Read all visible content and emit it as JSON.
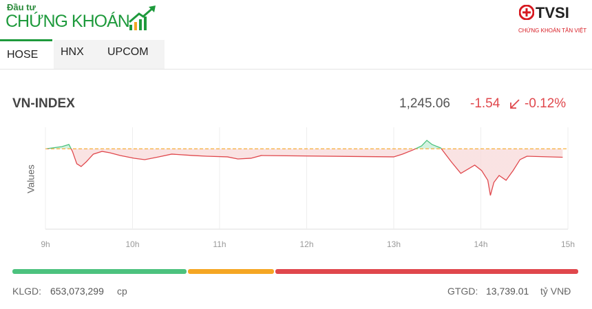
{
  "header": {
    "logo_top": "Đầu tư",
    "logo_main": "CHỨNG KHOÁN",
    "partner": "TVSI",
    "partner_sub": "CHỨNG KHOÁN TÂN VIỆT"
  },
  "tabs": [
    "HOSE",
    "HNX",
    "UPCOM"
  ],
  "index": {
    "name": "VN-INDEX",
    "value": "1,245.06",
    "change": "-1.54",
    "change_percent": "-0.12%"
  },
  "chart_data": {
    "type": "line",
    "y_label": "Values",
    "x": [
      9.02,
      9.19,
      9.27,
      9.31,
      9.36,
      9.41,
      9.47,
      9.55,
      9.65,
      9.74,
      9.86,
      10.02,
      10.14,
      10.3,
      10.45,
      10.69,
      10.85,
      11.09,
      11.21,
      11.36,
      11.48,
      13.0,
      13.1,
      13.22,
      13.32,
      13.38,
      13.44,
      13.54,
      13.66,
      13.77,
      13.85,
      13.93,
      14.01,
      14.08,
      14.11,
      14.15,
      14.21,
      14.29,
      14.37,
      14.45,
      14.53,
      14.94
    ],
    "values": [
      1246.63,
      1247.0,
      1247.38,
      1246.13,
      1243.88,
      1243.38,
      1244.25,
      1245.63,
      1246.13,
      1245.88,
      1245.38,
      1244.88,
      1244.63,
      1245.13,
      1245.63,
      1245.38,
      1245.25,
      1245.13,
      1244.75,
      1244.88,
      1245.38,
      1245.13,
      1245.63,
      1246.38,
      1247.13,
      1248.13,
      1247.38,
      1246.75,
      1244.25,
      1242.13,
      1242.88,
      1243.63,
      1242.63,
      1240.88,
      1238.13,
      1240.5,
      1241.75,
      1240.88,
      1242.63,
      1244.63,
      1245.25,
      1245.06
    ],
    "reference": 1246.6,
    "color_up": "#4cc27e",
    "color_down": "#e0474c",
    "fill_up": "#c9efd8",
    "fill_down": "#f8dcdc",
    "reference_color": "#f5a623",
    "xlim": [
      9,
      15
    ],
    "xticks": [
      {
        "value": 9,
        "label": "9h"
      },
      {
        "value": 10,
        "label": "10h"
      },
      {
        "value": 11,
        "label": "11h"
      },
      {
        "value": 12,
        "label": "12h"
      },
      {
        "value": 13,
        "label": "13h"
      },
      {
        "value": 14,
        "label": "14h"
      },
      {
        "value": 15,
        "label": "15h"
      }
    ],
    "ylim": [
      1232,
      1250.5
    ],
    "grid": true
  },
  "breadth": {
    "values": [
      155,
      77,
      270
    ],
    "colors": [
      "#4cc27e",
      "#f5a623",
      "#e0474c"
    ]
  },
  "footer": {
    "volume_label": "KLGD:",
    "volume": "653,073,299",
    "volume_unit": "cp",
    "value_label": "GTGD:",
    "value": "13,739.01",
    "value_unit": "tỷ VNĐ"
  }
}
